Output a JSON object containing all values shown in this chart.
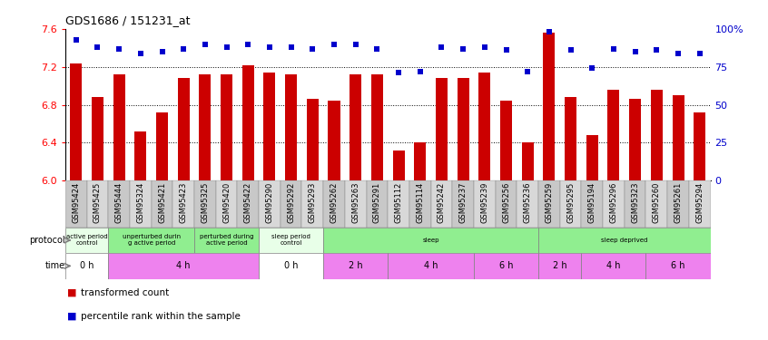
{
  "title": "GDS1686 / 151231_at",
  "samples": [
    "GSM95424",
    "GSM95425",
    "GSM95444",
    "GSM95324",
    "GSM95421",
    "GSM95423",
    "GSM95325",
    "GSM95420",
    "GSM95422",
    "GSM95290",
    "GSM95292",
    "GSM95293",
    "GSM95262",
    "GSM95263",
    "GSM95291",
    "GSM95112",
    "GSM95114",
    "GSM95242",
    "GSM95237",
    "GSM95239",
    "GSM95256",
    "GSM95236",
    "GSM95259",
    "GSM95295",
    "GSM95194",
    "GSM95296",
    "GSM95323",
    "GSM95260",
    "GSM95261",
    "GSM95294"
  ],
  "bar_values": [
    7.24,
    6.88,
    7.12,
    6.52,
    6.72,
    7.08,
    7.12,
    7.12,
    7.22,
    7.14,
    7.12,
    6.86,
    6.84,
    7.12,
    7.12,
    6.32,
    6.4,
    7.08,
    7.08,
    7.14,
    6.84,
    6.4,
    7.56,
    6.88,
    6.48,
    6.96,
    6.86,
    6.96,
    6.9,
    6.72
  ],
  "percentile_values": [
    93,
    88,
    87,
    84,
    85,
    87,
    90,
    88,
    90,
    88,
    88,
    87,
    90,
    90,
    87,
    71,
    72,
    88,
    87,
    88,
    86,
    72,
    98,
    86,
    74,
    87,
    85,
    86,
    84,
    84
  ],
  "ymin": 6.0,
  "ymax": 7.6,
  "yticks": [
    6.0,
    6.4,
    6.8,
    7.2,
    7.6
  ],
  "y2min": 0,
  "y2max": 100,
  "y2ticks": [
    0,
    25,
    50,
    75,
    100
  ],
  "y2ticklabels": [
    "0",
    "25",
    "50",
    "75",
    "100%"
  ],
  "bar_color": "#cc0000",
  "dot_color": "#0000cc",
  "protocol_groups": [
    {
      "label": "active period\ncontrol",
      "start": 0,
      "end": 2,
      "color": "#e8ffe8"
    },
    {
      "label": "unperturbed durin\ng active period",
      "start": 2,
      "end": 6,
      "color": "#90ee90"
    },
    {
      "label": "perturbed during\nactive period",
      "start": 6,
      "end": 9,
      "color": "#90ee90"
    },
    {
      "label": "sleep period\ncontrol",
      "start": 9,
      "end": 12,
      "color": "#e8ffe8"
    },
    {
      "label": "sleep",
      "start": 12,
      "end": 22,
      "color": "#90ee90"
    },
    {
      "label": "sleep deprived",
      "start": 22,
      "end": 30,
      "color": "#90ee90"
    }
  ],
  "time_groups": [
    {
      "label": "0 h",
      "start": 0,
      "end": 2,
      "color": "#ffffff"
    },
    {
      "label": "4 h",
      "start": 2,
      "end": 9,
      "color": "#ee82ee"
    },
    {
      "label": "0 h",
      "start": 9,
      "end": 12,
      "color": "#ffffff"
    },
    {
      "label": "2 h",
      "start": 12,
      "end": 15,
      "color": "#ee82ee"
    },
    {
      "label": "4 h",
      "start": 15,
      "end": 19,
      "color": "#ee82ee"
    },
    {
      "label": "6 h",
      "start": 19,
      "end": 22,
      "color": "#ee82ee"
    },
    {
      "label": "2 h",
      "start": 22,
      "end": 24,
      "color": "#ee82ee"
    },
    {
      "label": "4 h",
      "start": 24,
      "end": 27,
      "color": "#ee82ee"
    },
    {
      "label": "6 h",
      "start": 27,
      "end": 30,
      "color": "#ee82ee"
    }
  ],
  "bg_color": "#ffffff"
}
